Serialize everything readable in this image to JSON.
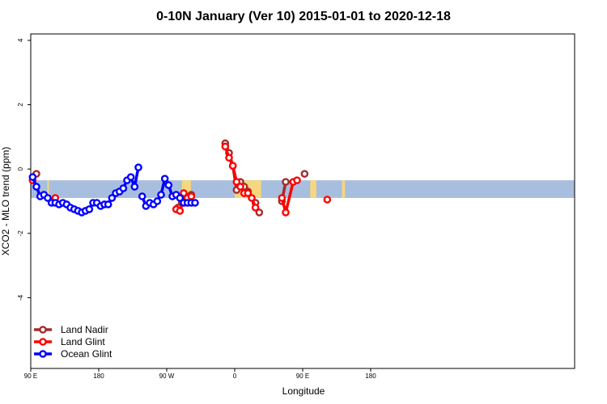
{
  "chart_data": {
    "type": "line",
    "title": "0-10N January (Ver 10)   2015-01-01 to 2020-12-18",
    "xlabel": "Longitude",
    "ylabel": "XCO2 - MLO trend (ppm)",
    "xlim": [
      90,
      450
    ],
    "ylim": [
      -6.2,
      4.2
    ],
    "x_ticks": [
      {
        "value": 90,
        "label": "90 E"
      },
      {
        "value": 180,
        "label": "180"
      },
      {
        "value": 270,
        "label": "90 W"
      },
      {
        "value": 360,
        "label": "0"
      },
      {
        "value": 450,
        "label": "90 E"
      },
      {
        "value": 540,
        "label": "180"
      }
    ],
    "y_ticks": [
      {
        "value": 4,
        "label": "4"
      },
      {
        "value": 2,
        "label": "2"
      },
      {
        "value": 0,
        "label": "0"
      },
      {
        "value": -2,
        "label": "-2"
      },
      {
        "value": -4,
        "label": "-4"
      }
    ],
    "band": {
      "y_top": -0.35,
      "y_bottom": -0.9,
      "ocean_color": "#a8bede",
      "land_color": "#f5d77e"
    },
    "land_segments": [
      [
        112,
        114
      ],
      [
        290,
        302
      ],
      [
        360,
        395
      ],
      [
        460,
        468
      ],
      [
        502,
        506
      ]
    ],
    "legend_position": "bottom-left",
    "series": [
      {
        "name": "Land Nadir",
        "color": "#a52a2a",
        "segments": [
          [
            [
              97.5,
              -0.15
            ]
          ],
          [
            [
              285,
              -1.2
            ],
            [
              290,
              -1.05
            ],
            [
              295,
              -0.85
            ],
            [
              302.5,
              -0.8
            ]
          ],
          [
            [
              347.5,
              0.8
            ],
            [
              352.5,
              0.5
            ],
            [
              357.5,
              0.1
            ]
          ],
          [
            [
              357.5,
              0.1
            ],
            [
              362.5,
              -0.65
            ],
            [
              367.5,
              -0.4
            ],
            [
              372.5,
              -0.55
            ],
            [
              377.5,
              -0.7
            ]
          ],
          [
            [
              387.5,
              -1.05
            ],
            [
              392.5,
              -1.35
            ]
          ],
          [
            [
              422.5,
              -1.0
            ],
            [
              427.5,
              -0.4
            ]
          ],
          [
            [
              452.5,
              -0.15
            ]
          ]
        ]
      },
      {
        "name": "Land Glint",
        "color": "#ff0000",
        "segments": [
          [
            [
              92.5,
              -0.35
            ]
          ],
          [
            [
              122.5,
              -0.9
            ]
          ],
          [
            [
              282.5,
              -1.25
            ],
            [
              287.5,
              -1.3
            ],
            [
              292.5,
              -0.95
            ],
            [
              297.5,
              -0.9
            ],
            [
              302.5,
              -0.85
            ]
          ],
          [
            [
              347.5,
              0.7
            ],
            [
              352.5,
              0.35
            ],
            [
              357.5,
              0.1
            ],
            [
              362.5,
              -0.4
            ],
            [
              367.5,
              -0.55
            ],
            [
              372.5,
              -0.75
            ],
            [
              377.5,
              -0.75
            ],
            [
              382.5,
              -0.9
            ],
            [
              387.5,
              -1.2
            ]
          ],
          [
            [
              422.5,
              -0.9
            ],
            [
              427.5,
              -1.35
            ],
            [
              437.5,
              -0.4
            ],
            [
              442.5,
              -0.35
            ]
          ],
          [
            [
              482.5,
              -0.95
            ]
          ],
          [
            [
              292.5,
              -0.75
            ]
          ]
        ]
      },
      {
        "name": "Ocean Glint",
        "color": "#0000ff",
        "segments": [
          [
            [
              92.5,
              -0.25
            ],
            [
              97.5,
              -0.55
            ],
            [
              102.5,
              -0.85
            ],
            [
              107.5,
              -0.8
            ],
            [
              112.5,
              -0.9
            ],
            [
              117.5,
              -1.05
            ],
            [
              122.5,
              -1.05
            ],
            [
              127.5,
              -1.1
            ],
            [
              132.5,
              -1.05
            ],
            [
              137.5,
              -1.1
            ],
            [
              142.5,
              -1.2
            ],
            [
              147.5,
              -1.25
            ],
            [
              152.5,
              -1.3
            ],
            [
              157.5,
              -1.35
            ],
            [
              162.5,
              -1.3
            ],
            [
              167.5,
              -1.25
            ],
            [
              172.5,
              -1.05
            ],
            [
              177.5,
              -1.05
            ],
            [
              182.5,
              -1.15
            ],
            [
              187.5,
              -1.1
            ],
            [
              192.5,
              -1.1
            ],
            [
              197.5,
              -0.9
            ],
            [
              202.5,
              -0.75
            ],
            [
              207.5,
              -0.7
            ],
            [
              212.5,
              -0.6
            ],
            [
              217.5,
              -0.35
            ],
            [
              222.5,
              -0.25
            ],
            [
              227.5,
              -0.55
            ],
            [
              232.5,
              0.05
            ]
          ],
          [
            [
              237.5,
              -0.85
            ],
            [
              242.5,
              -1.15
            ],
            [
              247.5,
              -1.05
            ],
            [
              252.5,
              -1.1
            ],
            [
              257.5,
              -1.0
            ],
            [
              262.5,
              -0.8
            ],
            [
              267.5,
              -0.3
            ],
            [
              272.5,
              -0.5
            ],
            [
              277.5,
              -0.85
            ],
            [
              282.5,
              -0.8
            ],
            [
              287.5,
              -0.9
            ],
            [
              292.5,
              -1.05
            ],
            [
              297.5,
              -1.05
            ],
            [
              302.5,
              -1.05
            ],
            [
              307.5,
              -1.05
            ]
          ]
        ]
      }
    ]
  }
}
